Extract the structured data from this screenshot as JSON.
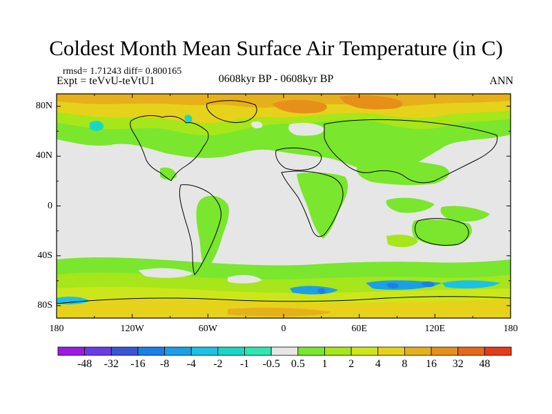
{
  "title": "Coldest Month Mean Surface Air Temperature (in C)",
  "stats": "rmsd= 1.71243 diff= 0.800165",
  "experiment": "Expt = teVvU-teVtU1",
  "period": "0608kyr BP - 0608kyr BP",
  "season": "ANN",
  "map": {
    "projection": "cylindrical-equidistant",
    "lon_range": [
      -180,
      180
    ],
    "lat_range": [
      -90,
      90
    ],
    "background_color": "#e6e6e6",
    "lat_labels": [
      "80N",
      "40N",
      "0",
      "40S",
      "80S"
    ],
    "lon_labels": [
      "180",
      "120W",
      "60W",
      "0",
      "60E",
      "120E",
      "180"
    ]
  },
  "colorbar": {
    "labels": [
      "-48",
      "-32",
      "-16",
      "-8",
      "-4",
      "-2",
      "-1",
      "-0.5",
      "0.5",
      "1",
      "2",
      "4",
      "8",
      "16",
      "32",
      "48"
    ],
    "colors": [
      "#9a1ae6",
      "#6a3ce8",
      "#3a55d8",
      "#1a80e8",
      "#1aa0e8",
      "#19c2e6",
      "#1ad6c8",
      "#2ee6b0",
      "#e6e6e6",
      "#7ae62e",
      "#a6e61a",
      "#cde61a",
      "#e6d21a",
      "#e6b01a",
      "#e6901a",
      "#e6681a",
      "#e63a1a"
    ]
  }
}
